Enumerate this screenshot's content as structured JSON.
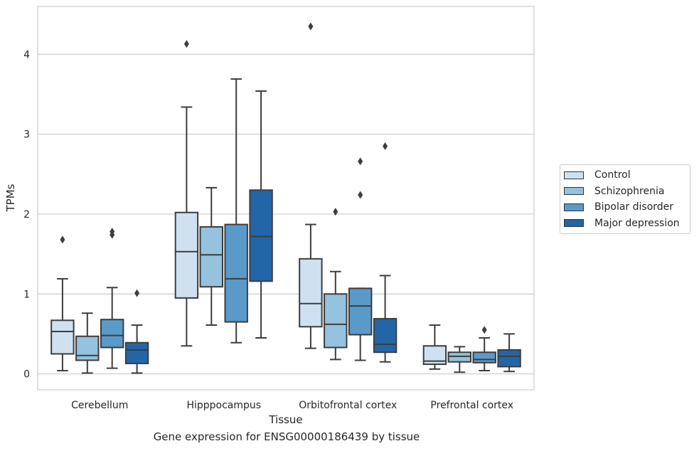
{
  "chart_data": {
    "type": "box",
    "title": "",
    "caption": "Gene expression for ENSG00000186439 by tissue",
    "xlabel": "Tissue",
    "ylabel": "TPMs",
    "ylim": [
      -0.2,
      4.6
    ],
    "yticks": [
      0,
      1,
      2,
      3,
      4
    ],
    "grid": "horizontal",
    "legend_position": "right",
    "categories": [
      "Cerebellum",
      "Hipppocampus",
      "Orbitofrontal cortex",
      "Prefrontal cortex"
    ],
    "series": [
      {
        "name": "Control",
        "color": "#cfe1f1",
        "boxes": [
          {
            "min": 0.04,
            "q1": 0.25,
            "median": 0.53,
            "q3": 0.67,
            "max": 1.19,
            "outliers": [
              1.68
            ]
          },
          {
            "min": 0.35,
            "q1": 0.95,
            "median": 1.53,
            "q3": 2.02,
            "max": 3.34,
            "outliers": [
              4.13
            ]
          },
          {
            "min": 0.32,
            "q1": 0.59,
            "median": 0.88,
            "q3": 1.44,
            "max": 1.87,
            "outliers": [
              4.35
            ]
          },
          {
            "min": 0.06,
            "q1": 0.12,
            "median": 0.16,
            "q3": 0.35,
            "max": 0.61,
            "outliers": []
          }
        ]
      },
      {
        "name": "Schizophrenia",
        "color": "#95c2de",
        "boxes": [
          {
            "min": 0.01,
            "q1": 0.17,
            "median": 0.23,
            "q3": 0.47,
            "max": 0.76,
            "outliers": []
          },
          {
            "min": 0.61,
            "q1": 1.09,
            "median": 1.49,
            "q3": 1.84,
            "max": 2.33,
            "outliers": []
          },
          {
            "min": 0.18,
            "q1": 0.33,
            "median": 0.62,
            "q3": 1.0,
            "max": 1.28,
            "outliers": [
              2.03
            ]
          },
          {
            "min": 0.02,
            "q1": 0.15,
            "median": 0.22,
            "q3": 0.27,
            "max": 0.34,
            "outliers": []
          }
        ]
      },
      {
        "name": "Bipolar disorder",
        "color": "#5a9ac9",
        "boxes": [
          {
            "min": 0.07,
            "q1": 0.33,
            "median": 0.48,
            "q3": 0.68,
            "max": 1.08,
            "outliers": [
              1.74,
              1.78
            ]
          },
          {
            "min": 0.39,
            "q1": 0.65,
            "median": 1.19,
            "q3": 1.87,
            "max": 3.69,
            "outliers": []
          },
          {
            "min": 0.17,
            "q1": 0.49,
            "median": 0.85,
            "q3": 1.07,
            "max": 1.07,
            "outliers": [
              2.24,
              2.66
            ]
          },
          {
            "min": 0.04,
            "q1": 0.14,
            "median": 0.18,
            "q3": 0.27,
            "max": 0.45,
            "outliers": [
              0.55
            ]
          }
        ]
      },
      {
        "name": "Major depression",
        "color": "#2366a8",
        "boxes": [
          {
            "min": 0.01,
            "q1": 0.13,
            "median": 0.3,
            "q3": 0.39,
            "max": 0.61,
            "outliers": [
              1.01
            ]
          },
          {
            "min": 0.45,
            "q1": 1.16,
            "median": 1.72,
            "q3": 2.3,
            "max": 3.54,
            "outliers": []
          },
          {
            "min": 0.15,
            "q1": 0.27,
            "median": 0.37,
            "q3": 0.69,
            "max": 1.23,
            "outliers": [
              2.85
            ]
          },
          {
            "min": 0.03,
            "q1": 0.09,
            "median": 0.22,
            "q3": 0.3,
            "max": 0.5,
            "outliers": []
          }
        ]
      }
    ]
  }
}
